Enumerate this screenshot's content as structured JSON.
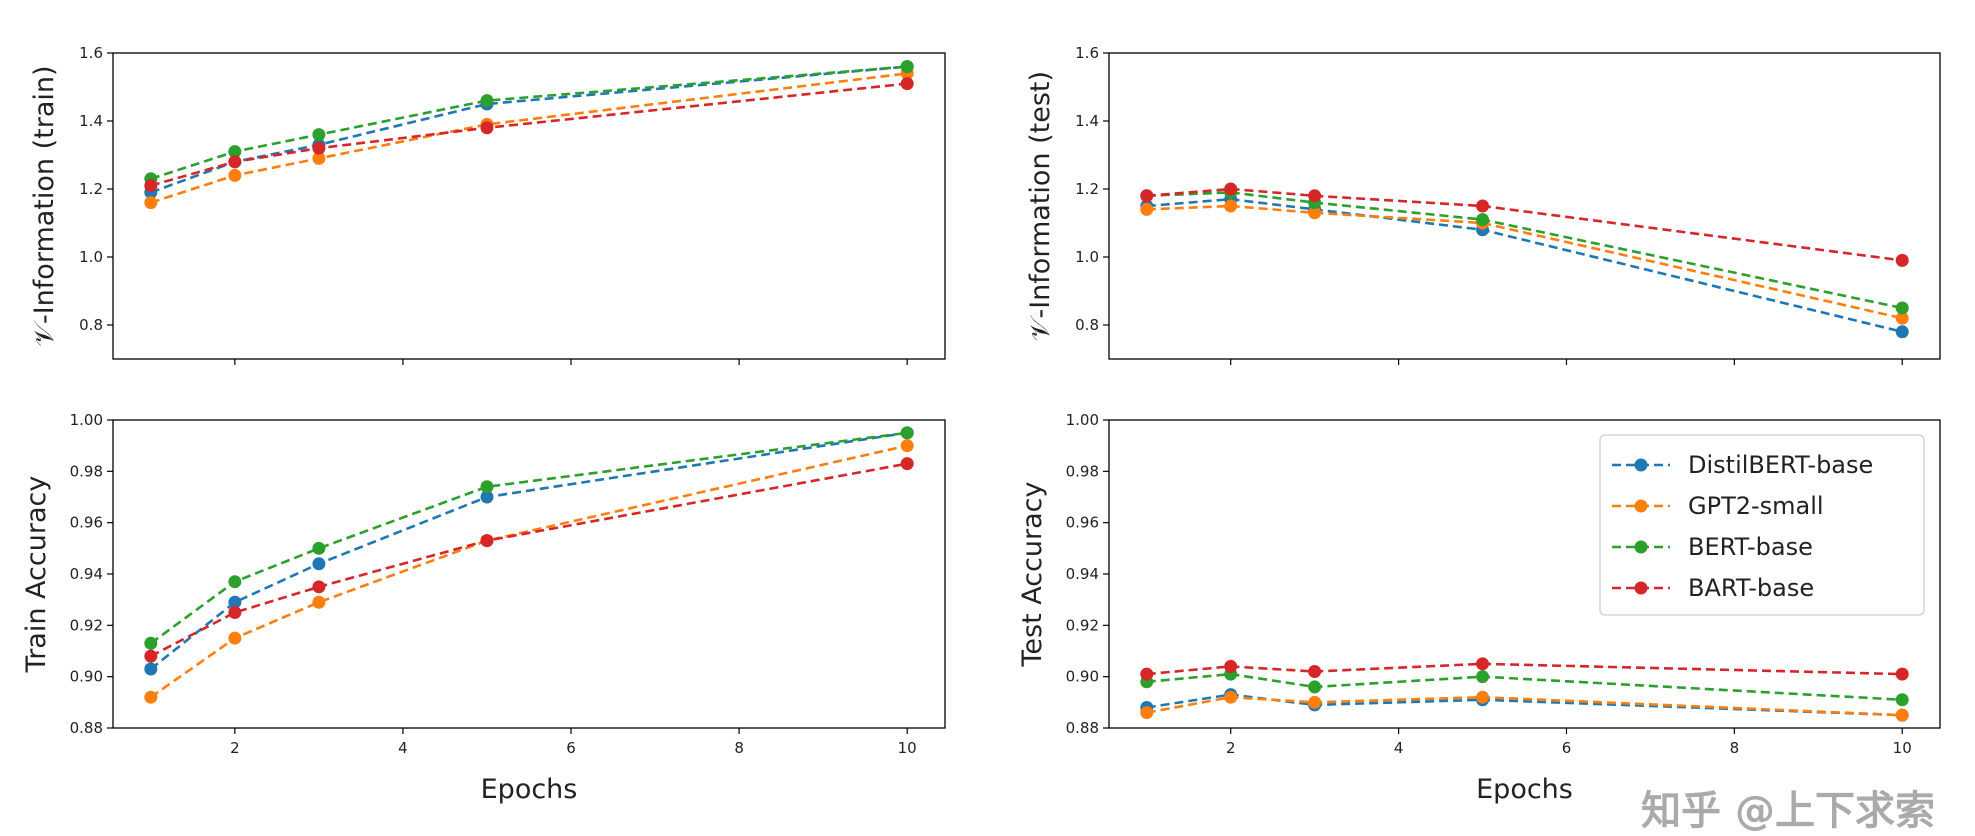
{
  "chart_data": [
    {
      "type": "line",
      "ylabel": "𝒱-Information (train)",
      "xlabel": "",
      "x": [
        1,
        2,
        3,
        5,
        10
      ],
      "xlim": [
        0.55,
        10.45
      ],
      "ylim": [
        0.7,
        1.6
      ],
      "yticks": [
        "0.8",
        "1.0",
        "1.2",
        "1.4",
        "1.6"
      ],
      "xticks": [],
      "series": [
        {
          "name": "DistilBERT-base",
          "values": [
            1.19,
            1.28,
            1.33,
            1.45,
            1.56
          ]
        },
        {
          "name": "GPT2-small",
          "values": [
            1.16,
            1.24,
            1.29,
            1.39,
            1.54
          ]
        },
        {
          "name": "BERT-base",
          "values": [
            1.23,
            1.31,
            1.36,
            1.46,
            1.56
          ]
        },
        {
          "name": "BART-base",
          "values": [
            1.21,
            1.28,
            1.32,
            1.38,
            1.51
          ]
        }
      ]
    },
    {
      "type": "line",
      "ylabel": "𝒱-Information (test)",
      "xlabel": "",
      "x": [
        1,
        2,
        3,
        5,
        10
      ],
      "xlim": [
        0.55,
        10.45
      ],
      "ylim": [
        0.7,
        1.6
      ],
      "yticks": [
        "0.8",
        "1.0",
        "1.2",
        "1.4",
        "1.6"
      ],
      "xticks": [],
      "series": [
        {
          "name": "DistilBERT-base",
          "values": [
            1.15,
            1.17,
            1.14,
            1.08,
            0.78
          ]
        },
        {
          "name": "GPT2-small",
          "values": [
            1.14,
            1.15,
            1.13,
            1.1,
            0.82
          ]
        },
        {
          "name": "BERT-base",
          "values": [
            1.18,
            1.19,
            1.16,
            1.11,
            0.85
          ]
        },
        {
          "name": "BART-base",
          "values": [
            1.18,
            1.2,
            1.18,
            1.15,
            0.99
          ]
        }
      ]
    },
    {
      "type": "line",
      "ylabel": "Train Accuracy",
      "xlabel": "Epochs",
      "x": [
        1,
        2,
        3,
        5,
        10
      ],
      "xlim": [
        0.55,
        10.45
      ],
      "ylim": [
        0.88,
        1.0
      ],
      "yticks": [
        "0.88",
        "0.90",
        "0.92",
        "0.94",
        "0.96",
        "0.98",
        "1.00"
      ],
      "xticks": [
        "2",
        "4",
        "6",
        "8",
        "10"
      ],
      "series": [
        {
          "name": "DistilBERT-base",
          "values": [
            0.903,
            0.929,
            0.944,
            0.97,
            0.995
          ]
        },
        {
          "name": "GPT2-small",
          "values": [
            0.892,
            0.915,
            0.929,
            0.953,
            0.99
          ]
        },
        {
          "name": "BERT-base",
          "values": [
            0.913,
            0.937,
            0.95,
            0.974,
            0.995
          ]
        },
        {
          "name": "BART-base",
          "values": [
            0.908,
            0.925,
            0.935,
            0.953,
            0.983
          ]
        }
      ]
    },
    {
      "type": "line",
      "ylabel": "Test Accuracy",
      "xlabel": "Epochs",
      "x": [
        1,
        2,
        3,
        5,
        10
      ],
      "xlim": [
        0.55,
        10.45
      ],
      "ylim": [
        0.88,
        1.0
      ],
      "yticks": [
        "0.88",
        "0.90",
        "0.92",
        "0.94",
        "0.96",
        "0.98",
        "1.00"
      ],
      "xticks": [
        "2",
        "4",
        "6",
        "8",
        "10"
      ],
      "legend": "top-right",
      "series": [
        {
          "name": "DistilBERT-base",
          "values": [
            0.888,
            0.893,
            0.889,
            0.891,
            0.885
          ]
        },
        {
          "name": "GPT2-small",
          "values": [
            0.886,
            0.892,
            0.89,
            0.892,
            0.885
          ]
        },
        {
          "name": "BERT-base",
          "values": [
            0.898,
            0.901,
            0.896,
            0.9,
            0.891
          ]
        },
        {
          "name": "BART-base",
          "values": [
            0.901,
            0.904,
            0.902,
            0.905,
            0.901
          ]
        }
      ]
    }
  ],
  "colors": [
    "#1f77b4",
    "#ff7f0e",
    "#2ca02c",
    "#d62728"
  ],
  "watermark": "知乎 @上下求索"
}
